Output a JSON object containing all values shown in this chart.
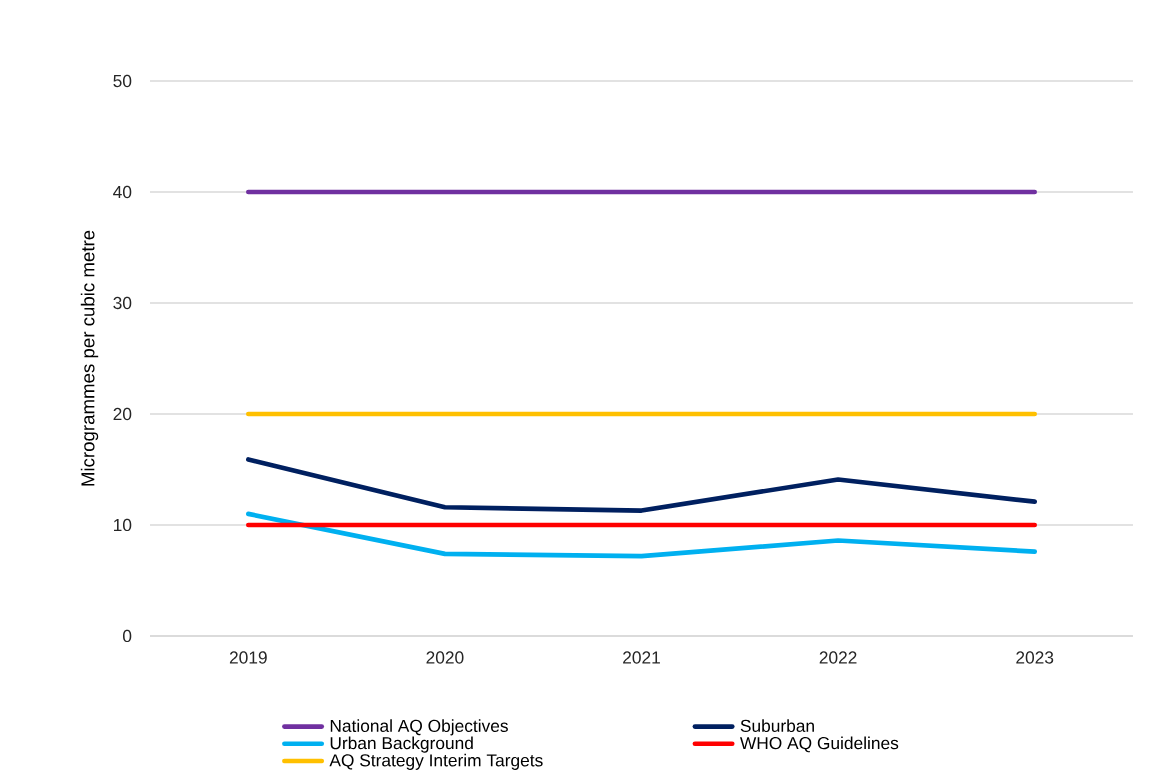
{
  "chart_data": {
    "type": "line",
    "ylabel": "Microgrammes per cubic metre",
    "categories": [
      "2019",
      "2020",
      "2021",
      "2022",
      "2023"
    ],
    "series": [
      {
        "name": "National AQ Objectives",
        "color": "#7030a0",
        "values": [
          40,
          40,
          40,
          40,
          40
        ]
      },
      {
        "name": "Suburban",
        "color": "#002060",
        "values": [
          15.9,
          11.6,
          11.3,
          14.1,
          12.1
        ]
      },
      {
        "name": "Urban Background",
        "color": "#00b0f0",
        "values": [
          11.0,
          7.4,
          7.2,
          8.6,
          7.6
        ]
      },
      {
        "name": "WHO AQ Guidelines",
        "color": "#ff0000",
        "values": [
          10,
          10,
          10,
          10,
          10
        ]
      },
      {
        "name": "AQ Strategy Interim Targets",
        "color": "#ffc000",
        "values": [
          20,
          20,
          20,
          20,
          20
        ]
      }
    ],
    "ylim": [
      0,
      50
    ],
    "yticks": [
      0,
      10,
      20,
      30,
      40,
      50
    ],
    "grid": "y",
    "legend": "bottom"
  }
}
